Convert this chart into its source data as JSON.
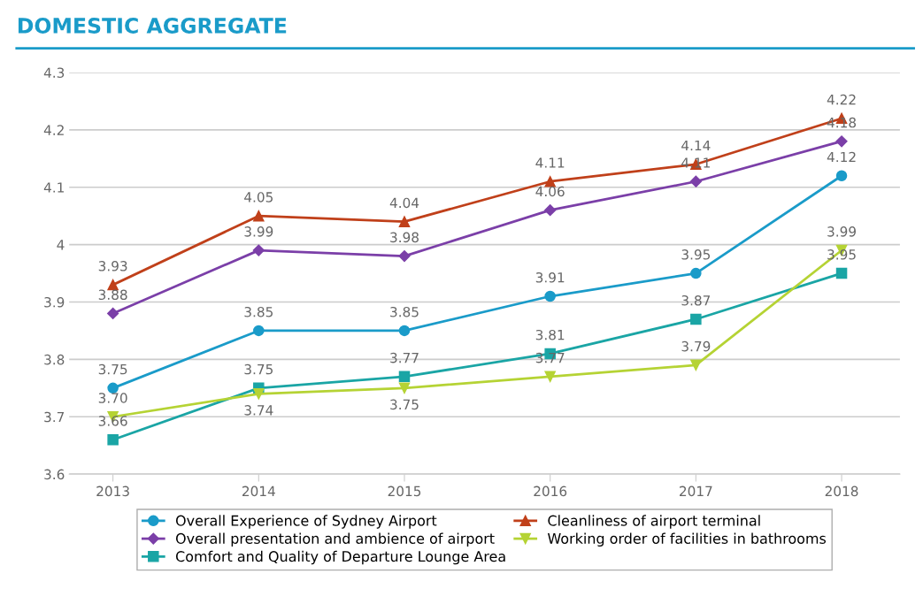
{
  "chart_data": {
    "type": "line",
    "title": "DOMESTIC AGGREGATE",
    "categories": [
      "2013",
      "2014",
      "2015",
      "2016",
      "2017",
      "2018"
    ],
    "series": [
      {
        "name": "Overall Experience of Sydney Airport",
        "color": "#1a9bc9",
        "marker": "circle",
        "values": [
          3.75,
          3.85,
          3.85,
          3.91,
          3.95,
          4.12
        ],
        "value_labels": [
          "3.75",
          "3.85",
          "3.85",
          "3.91",
          "3.95",
          "4.12"
        ]
      },
      {
        "name": "Overall presentation and ambience of airport",
        "color": "#7b3fa8",
        "marker": "diamond",
        "values": [
          3.88,
          3.99,
          3.98,
          4.06,
          4.11,
          4.18
        ],
        "value_labels": [
          "3.88",
          "3.99",
          "3.98",
          "4.06",
          "4.11",
          "4.18"
        ]
      },
      {
        "name": "Comfort and Quality of Departure Lounge Area",
        "color": "#1aa5a5",
        "marker": "square",
        "values": [
          3.66,
          3.75,
          3.77,
          3.81,
          3.87,
          3.95
        ],
        "value_labels": [
          "3.66",
          "3.75",
          "3.77",
          "3.81",
          "3.87",
          "3.95"
        ]
      },
      {
        "name": "Cleanliness of airport terminal",
        "color": "#c0401a",
        "marker": "triangle",
        "values": [
          3.93,
          4.05,
          4.04,
          4.11,
          4.14,
          4.22
        ],
        "value_labels": [
          "3.93",
          "4.05",
          "4.04",
          "4.11",
          "4.14",
          "4.22"
        ]
      },
      {
        "name": "Working order of facilities in bathrooms",
        "color": "#b5d334",
        "marker": "triangle_down",
        "values": [
          3.7,
          3.74,
          3.75,
          3.77,
          3.79,
          3.99
        ],
        "value_labels": [
          "3.70",
          "3.74",
          "3.75",
          "3.77",
          "3.79",
          "3.99"
        ]
      }
    ],
    "ylim": [
      3.6,
      4.3
    ],
    "yticks": [
      3.6,
      3.7,
      3.8,
      3.9,
      4,
      4.1,
      4.2,
      4.3
    ],
    "grid": "y",
    "legend": "bottom"
  }
}
